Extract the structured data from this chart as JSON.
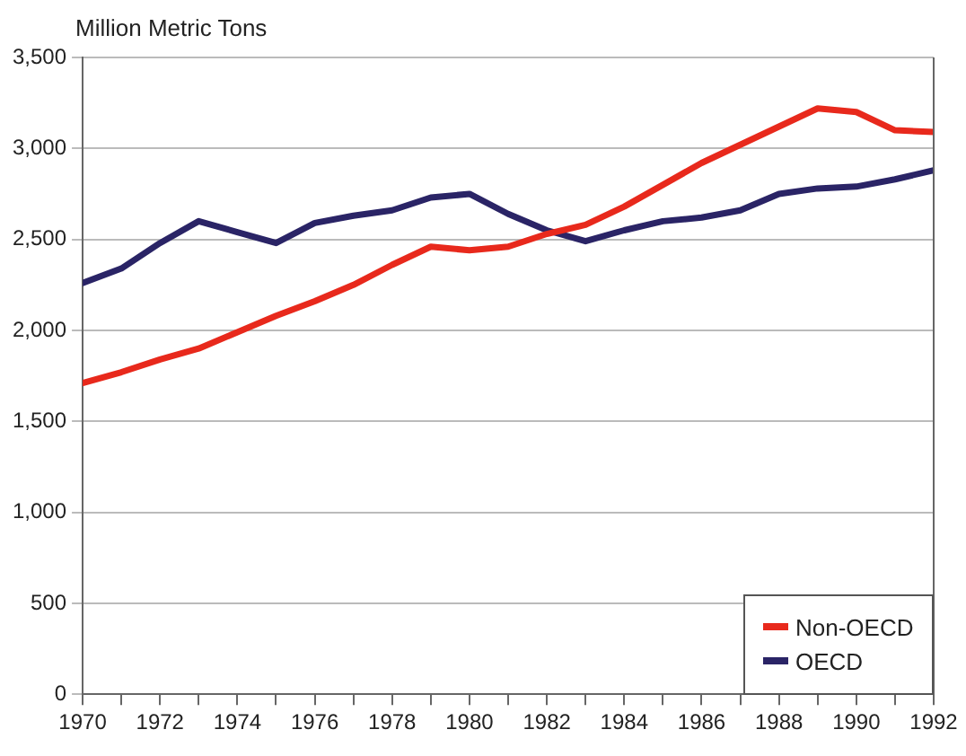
{
  "chart_data": {
    "type": "line",
    "ylabel": "Million Metric Tons",
    "x": [
      1970,
      1971,
      1972,
      1973,
      1974,
      1975,
      1976,
      1977,
      1978,
      1979,
      1980,
      1981,
      1982,
      1983,
      1984,
      1985,
      1986,
      1987,
      1988,
      1989,
      1990,
      1991,
      1992
    ],
    "series": [
      {
        "name": "Non-OECD",
        "color": "#e8291c",
        "values": [
          1710,
          1770,
          1840,
          1900,
          1990,
          2080,
          2160,
          2250,
          2360,
          2460,
          2440,
          2460,
          2530,
          2580,
          2680,
          2800,
          2920,
          3020,
          3120,
          3220,
          3200,
          3100,
          3090
        ]
      },
      {
        "name": "OECD",
        "color": "#2a2466",
        "values": [
          2260,
          2340,
          2480,
          2600,
          2540,
          2480,
          2590,
          2630,
          2660,
          2730,
          2750,
          2640,
          2550,
          2490,
          2550,
          2600,
          2620,
          2660,
          2750,
          2780,
          2790,
          2830,
          2880
        ]
      }
    ],
    "xlim": [
      1970,
      1992
    ],
    "xticks": [
      1970,
      {
        "value": 1971,
        "label": null
      },
      1972,
      {
        "value": 1973,
        "label": null
      },
      1974,
      {
        "value": 1975,
        "label": null
      },
      1976,
      {
        "value": 1977,
        "label": null
      },
      1978,
      {
        "value": 1979,
        "label": null
      },
      1980,
      {
        "value": 1981,
        "label": null
      },
      1982,
      {
        "value": 1983,
        "label": null
      },
      1984,
      {
        "value": 1985,
        "label": null
      },
      1986,
      {
        "value": 1987,
        "label": null
      },
      1988,
      {
        "value": 1989,
        "label": null
      },
      1990,
      {
        "value": 1991,
        "label": null
      },
      1992
    ],
    "ylim": [
      0,
      3500
    ],
    "yticks": [
      {
        "value": 0,
        "label": "0"
      },
      {
        "value": 500,
        "label": "500"
      },
      {
        "value": 1000,
        "label": "1,000"
      },
      {
        "value": 1500,
        "label": "1,500"
      },
      {
        "value": 2000,
        "label": "2,000"
      },
      {
        "value": 2500,
        "label": "2,500"
      },
      {
        "value": 3000,
        "label": "3,000"
      },
      {
        "value": 3500,
        "label": "3,500"
      }
    ],
    "grid": "y",
    "legend": "bottom right",
    "marker": "none",
    "line_style": "solid"
  }
}
